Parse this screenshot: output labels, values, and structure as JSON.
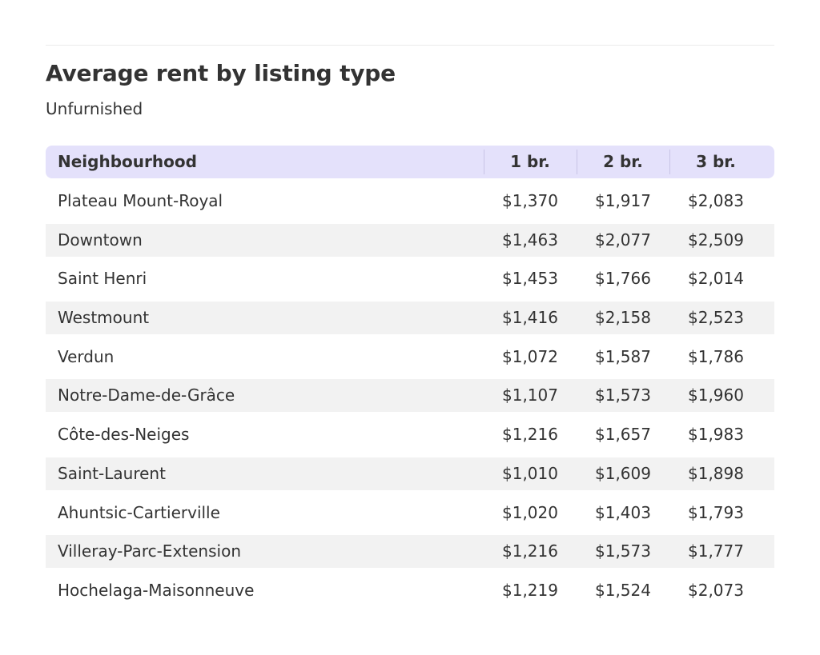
{
  "title": "Average rent by listing type",
  "subtitle": "Unfurnished",
  "chart_data": {
    "type": "table",
    "title": "Average rent by listing type",
    "subtitle": "Unfurnished",
    "columns": [
      "Neighbourhood",
      "1 br.",
      "2 br.",
      "3 br."
    ],
    "rows": [
      [
        "Plateau Mount-Royal",
        "$1,370",
        "$1,917",
        "$2,083"
      ],
      [
        "Downtown",
        "$1,463",
        "$2,077",
        "$2,509"
      ],
      [
        "Saint Henri",
        "$1,453",
        "$1,766",
        "$2,014"
      ],
      [
        "Westmount",
        "$1,416",
        "$2,158",
        "$2,523"
      ],
      [
        "Verdun",
        "$1,072",
        "$1,587",
        "$1,786"
      ],
      [
        "Notre-Dame-de-Grâce",
        "$1,107",
        "$1,573",
        "$1,960"
      ],
      [
        "Côte-des-Neiges",
        "$1,216",
        "$1,657",
        "$1,983"
      ],
      [
        "Saint-Laurent",
        "$1,010",
        "$1,609",
        "$1,898"
      ],
      [
        "Ahuntsic-Cartierville",
        "$1,020",
        "$1,403",
        "$1,793"
      ],
      [
        "Villeray-Parc-Extension",
        "$1,216",
        "$1,573",
        "$1,777"
      ],
      [
        "Hochelaga-Maisonneuve",
        "$1,219",
        "$1,524",
        "$2,073"
      ]
    ]
  },
  "colors": {
    "header_background": "#e4e1fb",
    "stripe_background": "#f2f2f2",
    "text": "#333333"
  }
}
